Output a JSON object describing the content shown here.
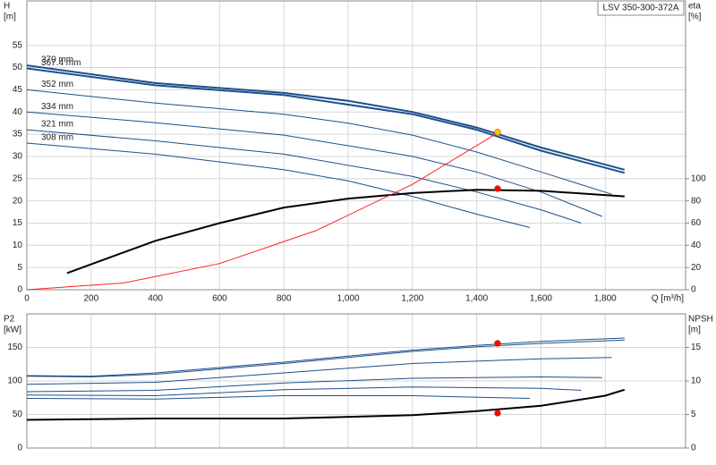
{
  "chart_data": [
    {
      "type": "line",
      "title": "LSV 350-300-372A",
      "ylabel": "H",
      "yunit": "[m]",
      "y2label": "eta",
      "y2unit": "[%]",
      "xlabel": "Q [m³/h]",
      "xlim": [
        0,
        2050
      ],
      "ylim": [
        0,
        65
      ],
      "y2lim": [
        0,
        260
      ],
      "xticks": [
        0,
        200,
        400,
        600,
        800,
        {
          "value": 1000,
          "label": "1,000"
        },
        {
          "value": 1200,
          "label": "1,200"
        },
        {
          "value": 1400,
          "label": "1,400"
        },
        {
          "value": 1600,
          "label": "1,600"
        },
        {
          "value": 1800,
          "label": "1,800"
        }
      ],
      "yticks": [
        0,
        5,
        10,
        15,
        20,
        25,
        30,
        35,
        40,
        45,
        50,
        55
      ],
      "y2ticks": [
        0,
        20,
        40,
        60,
        80,
        100
      ],
      "grid": true,
      "series": [
        {
          "name": "370 mm",
          "color": "#1d4f8c",
          "width": 2,
          "x": [
            0,
            400,
            800,
            1000,
            1200,
            1400,
            1600,
            1860
          ],
          "values": [
            50.5,
            46.5,
            44.3,
            42.5,
            40,
            36.5,
            32,
            27
          ]
        },
        {
          "name": "367.4 mm",
          "color": "#1d4f8c",
          "width": 2,
          "x": [
            0,
            400,
            800,
            1200,
            1400,
            1600,
            1860
          ],
          "values": [
            49.8,
            46,
            43.8,
            39.5,
            36,
            31.3,
            26.3
          ]
        },
        {
          "name": "352 mm",
          "color": "#1d4f8c",
          "width": 1,
          "x": [
            0,
            400,
            800,
            1000,
            1200,
            1400,
            1600,
            1820
          ],
          "values": [
            45,
            42,
            39.5,
            37.5,
            34.8,
            31,
            26.5,
            21.5
          ]
        },
        {
          "name": "334 mm",
          "color": "#1d4f8c",
          "width": 1,
          "x": [
            0,
            400,
            800,
            1200,
            1400,
            1600,
            1790
          ],
          "values": [
            40,
            37.6,
            34.8,
            30,
            26.5,
            22,
            16.5
          ]
        },
        {
          "name": "321 mm",
          "color": "#1d4f8c",
          "width": 1,
          "x": [
            0,
            400,
            800,
            1200,
            1400,
            1600,
            1725
          ],
          "values": [
            36,
            33.5,
            30.5,
            25.5,
            22,
            18,
            15
          ]
        },
        {
          "name": "308 mm",
          "color": "#1d4f8c",
          "width": 1,
          "x": [
            0,
            400,
            800,
            1000,
            1200,
            1400,
            1565
          ],
          "values": [
            33,
            30.5,
            27,
            24.5,
            21,
            17,
            14
          ]
        },
        {
          "color": "#000000",
          "width": 2,
          "axis": "y2",
          "x": [
            125,
            400,
            600,
            800,
            1000,
            1200,
            1400,
            1600,
            1860
          ],
          "values": [
            15,
            44,
            60,
            74,
            82,
            87,
            90,
            89,
            84
          ]
        },
        {
          "color": "#ff2020",
          "width": 1,
          "x": [
            0,
            300,
            600,
            900,
            1200,
            1470
          ],
          "values": [
            0,
            1.5,
            5.9,
            13.3,
            23.7,
            35.5
          ]
        }
      ],
      "markers": [
        {
          "color": "#ffc000",
          "x": 1465,
          "y": 35.5
        },
        {
          "color": "#ff0000",
          "x": 1465,
          "y": 91,
          "axis": "y2"
        }
      ]
    },
    {
      "type": "line",
      "ylabel": "P2",
      "yunit": "[kW]",
      "y2label": "NPSH",
      "y2unit": "[m]",
      "xlim": [
        0,
        2050
      ],
      "ylim": [
        0,
        200
      ],
      "y2lim": [
        0,
        20
      ],
      "xticks": [
        0,
        200,
        400,
        600,
        800,
        1000,
        1200,
        1400,
        1600,
        1800
      ],
      "yticks": [
        0,
        50,
        100,
        150
      ],
      "y2ticks": [
        0,
        5,
        10,
        15
      ],
      "grid": true,
      "series": [
        {
          "color": "#1d4f8c",
          "width": 1,
          "x": [
            0,
            200,
            400,
            800,
            1200,
            1400,
            1600,
            1860
          ],
          "values": [
            108,
            107,
            112,
            128,
            146,
            153,
            159,
            164
          ]
        },
        {
          "color": "#1d4f8c",
          "width": 1,
          "x": [
            0,
            200,
            400,
            800,
            1200,
            1400,
            1600,
            1860
          ],
          "values": [
            107,
            106,
            110,
            126,
            144,
            151,
            156,
            161
          ]
        },
        {
          "color": "#1d4f8c",
          "width": 1,
          "x": [
            0,
            400,
            800,
            1200,
            1600,
            1820
          ],
          "values": [
            95,
            98,
            112,
            126,
            133,
            135
          ]
        },
        {
          "color": "#1d4f8c",
          "width": 1,
          "x": [
            0,
            400,
            800,
            1200,
            1600,
            1790
          ],
          "values": [
            84,
            86,
            97,
            104,
            106,
            105
          ]
        },
        {
          "color": "#1d4f8c",
          "width": 1,
          "x": [
            0,
            400,
            800,
            1200,
            1600,
            1725
          ],
          "values": [
            79,
            78,
            87,
            91,
            89,
            86
          ]
        },
        {
          "color": "#1d4f8c",
          "width": 1,
          "x": [
            0,
            400,
            800,
            1200,
            1565
          ],
          "values": [
            74,
            73,
            78,
            78,
            74
          ]
        },
        {
          "color": "#000000",
          "width": 2,
          "axis": "y2",
          "x": [
            0,
            400,
            800,
            1200,
            1400,
            1600,
            1800,
            1860
          ],
          "values": [
            4.2,
            4.4,
            4.4,
            4.9,
            5.5,
            6.3,
            7.8,
            8.7
          ]
        }
      ],
      "markers": [
        {
          "color": "#ff0000",
          "x": 1465,
          "y": 156
        },
        {
          "color": "#ff0000",
          "x": 1465,
          "y": 5.2,
          "axis": "y2"
        }
      ]
    }
  ]
}
